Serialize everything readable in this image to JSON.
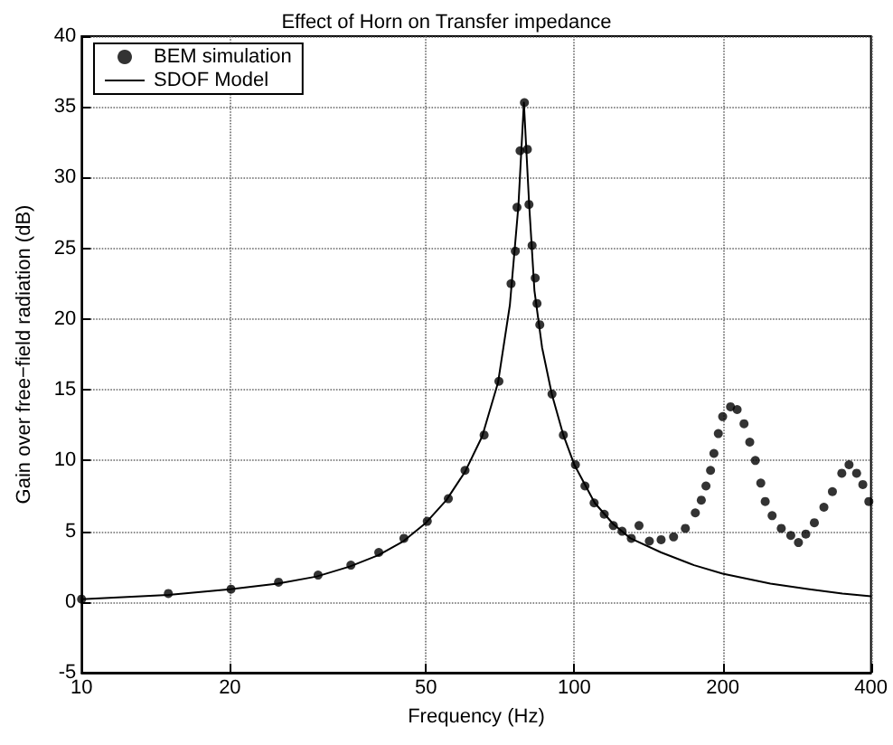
{
  "chart_data": {
    "type": "line",
    "title": "Effect of Horn on Transfer impedance",
    "xlabel": "Frequency (Hz)",
    "ylabel": "Gain over free−field radiation (dB)",
    "log": "x",
    "xlim": [
      10,
      400
    ],
    "xticks": [
      10,
      20,
      50,
      100,
      200,
      400
    ],
    "ylim": [
      -5,
      40
    ],
    "yticks": [
      -5,
      0,
      5,
      10,
      15,
      20,
      25,
      30,
      35,
      40
    ],
    "grid": true,
    "legend": "top left",
    "line_style": "dotted",
    "series": [
      {
        "name": "BEM simulation",
        "type": "scatter",
        "marker": "circle",
        "color": "#000000",
        "x": [
          10,
          15,
          20.1,
          25.1,
          30.2,
          35.2,
          40.1,
          45.1,
          50.3,
          55.5,
          60,
          65.6,
          70.3,
          74.4,
          75.9,
          76.5,
          77.6,
          79.2,
          80.3,
          80.9,
          82.1,
          83.3,
          84,
          85.1,
          90.1,
          95,
          100.5,
          105.1,
          109.7,
          115,
          120,
          125,
          130.5,
          135.3,
          142,
          150,
          159,
          168,
          176,
          181,
          185,
          189,
          192,
          196,
          200,
          207.5,
          214,
          221,
          227,
          233,
          239,
          244,
          252,
          263,
          275,
          285,
          295,
          307,
          321,
          334,
          349,
          361,
          374,
          385,
          396
        ],
        "values": [
          0.2,
          0.6,
          0.9,
          1.4,
          1.9,
          2.6,
          3.5,
          4.5,
          5.7,
          7.3,
          9.3,
          11.8,
          15.6,
          22.5,
          24.8,
          27.9,
          31.9,
          35.3,
          32,
          28.1,
          25.2,
          22.9,
          21.1,
          19.6,
          14.7,
          11.8,
          9.7,
          8.2,
          7,
          6.2,
          5.4,
          5,
          4.5,
          5.4,
          4.3,
          4.4,
          4.6,
          5.2,
          6.3,
          7.2,
          8.2,
          9.3,
          10.5,
          11.9,
          13.1,
          13.8,
          13.6,
          12.6,
          11.3,
          10,
          8.4,
          7.1,
          6.1,
          5.2,
          4.7,
          4.2,
          4.8,
          5.6,
          6.7,
          7.8,
          9.1,
          9.7,
          9.1,
          8.3,
          7.1
        ]
      },
      {
        "name": "SDOF Model",
        "marker": "none",
        "line_style": "solid",
        "color": "#000000",
        "x": [
          10,
          15,
          20,
          25,
          30,
          35,
          40,
          45,
          50,
          55,
          60,
          65,
          70,
          74,
          77,
          79,
          81,
          83,
          86,
          90,
          95,
          100,
          110,
          120,
          130,
          150,
          175,
          200,
          250,
          300,
          350,
          400
        ],
        "values": [
          0.2,
          0.5,
          0.9,
          1.3,
          1.8,
          2.5,
          3.3,
          4.3,
          5.6,
          7.2,
          9.2,
          11.7,
          15.5,
          21,
          28,
          35.3,
          28,
          22,
          18,
          14.7,
          11.8,
          9.7,
          7,
          5.5,
          4.5,
          3.5,
          2.6,
          2,
          1.3,
          0.9,
          0.6,
          0.4
        ]
      }
    ]
  }
}
